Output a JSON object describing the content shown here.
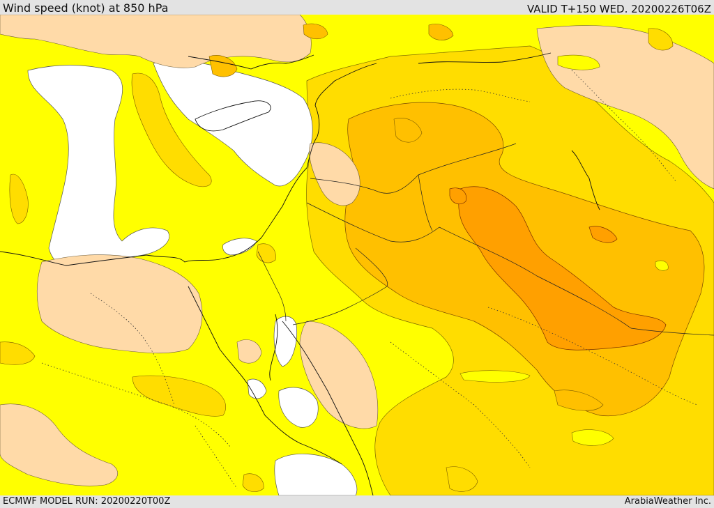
{
  "header": {
    "title": "Wind speed (knot) at 850 hPa",
    "valid": "VALID T+150 WED. 20200226T06Z"
  },
  "footer": {
    "model_run": "ECMWF MODEL RUN: 20200220T00Z",
    "credit": "ArabiaWeather Inc."
  },
  "map": {
    "colors": {
      "below_lowest_band": "#ffffff",
      "band_1": "#ffff00",
      "band_2": "#ffdd00",
      "band_3": "#ffc000",
      "band_4": "#ffa000",
      "land_overlay": "#ffdaa8"
    }
  }
}
